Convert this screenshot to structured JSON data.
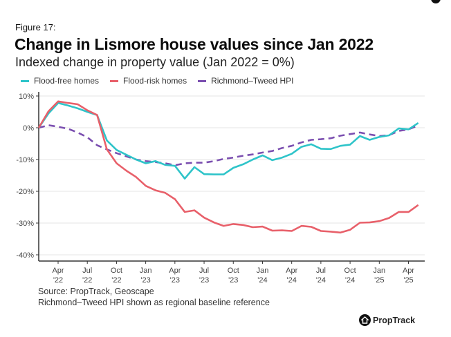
{
  "figure_label": "Figure 17:",
  "source": "Source: PropTrack, Geoscape",
  "note": "Richmond–Tweed HPI shown as regional baseline reference",
  "brand": "PropTrack",
  "chart_data": {
    "type": "line",
    "title": "Change in Lismore house values since Jan 2022",
    "subtitle": "Indexed change in property value (Jan 2022 = 0%)",
    "xlabel": "",
    "ylabel": "",
    "x": [
      "2022-01",
      "2022-02",
      "2022-03",
      "2022-04",
      "2022-05",
      "2022-06",
      "2022-07",
      "2022-08",
      "2022-09",
      "2022-10",
      "2022-11",
      "2022-12",
      "2023-01",
      "2023-02",
      "2023-03",
      "2023-04",
      "2023-05",
      "2023-06",
      "2023-07",
      "2023-08",
      "2023-09",
      "2023-10",
      "2023-11",
      "2023-12",
      "2024-01",
      "2024-02",
      "2024-03",
      "2024-04",
      "2024-05",
      "2024-06",
      "2024-07",
      "2024-08",
      "2024-09",
      "2024-10",
      "2024-11",
      "2024-12",
      "2025-01",
      "2025-02",
      "2025-03",
      "2025-04"
    ],
    "x_ticks": [
      {
        "m": "Apr",
        "y": "'22"
      },
      {
        "m": "Jul",
        "y": "'22"
      },
      {
        "m": "Oct",
        "y": "'22"
      },
      {
        "m": "Jan",
        "y": "'23"
      },
      {
        "m": "Apr",
        "y": "'23"
      },
      {
        "m": "Jul",
        "y": "'23"
      },
      {
        "m": "Oct",
        "y": "'23"
      },
      {
        "m": "Jan",
        "y": "'24"
      },
      {
        "m": "Apr",
        "y": "'24"
      },
      {
        "m": "Jul",
        "y": "'24"
      },
      {
        "m": "Oct",
        "y": "'24"
      },
      {
        "m": "Jan",
        "y": "'25"
      },
      {
        "m": "Apr",
        "y": "'25"
      }
    ],
    "y_ticks": [
      "10%",
      "0%",
      "-10%",
      "-20%",
      "-30%",
      "-40%"
    ],
    "y_tick_values": [
      10,
      0,
      -10,
      -20,
      -30,
      -40
    ],
    "ylim": [
      -40,
      10
    ],
    "grid": true,
    "legend": "top",
    "series": [
      {
        "name": "Flood-free homes",
        "color": "#2ec4c9",
        "dash": false,
        "values": [
          0,
          4.5,
          7.8,
          7,
          6.1,
          5,
          4,
          -4,
          -7,
          -8.5,
          -10,
          -11.2,
          -10.5,
          -11.7,
          -12,
          -16,
          -12.4,
          -14.6,
          -14.7,
          -14.7,
          -12.6,
          -11.5,
          -10,
          -8.7,
          -10.2,
          -9.4,
          -8.2,
          -6,
          -5.2,
          -6.6,
          -6.7,
          -5.7,
          -5.3,
          -2.6,
          -3.8,
          -2.9,
          -2.4,
          -0.2,
          -0.5,
          1.5
        ]
      },
      {
        "name": "Flood-risk homes",
        "color": "#e8606a",
        "dash": false,
        "values": [
          0,
          5.2,
          8.3,
          7.8,
          7.4,
          5.5,
          4,
          -6.8,
          -11.2,
          -13.5,
          -15.5,
          -18.3,
          -19.7,
          -20.5,
          -22.5,
          -26.5,
          -26,
          -28.3,
          -29.8,
          -30.9,
          -30.3,
          -30.6,
          -31.3,
          -31.1,
          -32.4,
          -32.3,
          -32.5,
          -30.9,
          -31.2,
          -32.5,
          -32.7,
          -33,
          -32.1,
          -29.9,
          -29.8,
          -29.4,
          -28.4,
          -26.5,
          -26.5,
          -24.3
        ]
      },
      {
        "name": "Richmond–Tweed HPI",
        "color": "#7b4fb0",
        "dash": true,
        "values": [
          0,
          0.8,
          0.3,
          -0.3,
          -1.5,
          -3,
          -5.5,
          -6.8,
          -8,
          -9,
          -10,
          -10.5,
          -10.8,
          -11.2,
          -11.8,
          -11.2,
          -11,
          -11,
          -10.5,
          -9.8,
          -9.4,
          -8.8,
          -8.4,
          -7.8,
          -7.3,
          -6.4,
          -5.7,
          -4.6,
          -3.8,
          -3.6,
          -3.3,
          -2.5,
          -2,
          -1.5,
          -2.1,
          -2.6,
          -2.3,
          -1,
          -0.5,
          0.7
        ]
      }
    ]
  }
}
